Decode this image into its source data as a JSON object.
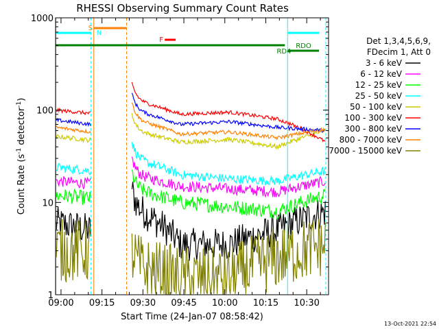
{
  "chart_data": {
    "type": "line",
    "title": "RHESSI Observing Summary Count Rates",
    "xlabel": "Start Time (24-Jan-07 08:58:42)",
    "ylabel_main": "Count Rate (s",
    "ylabel_sup1": "-1",
    "ylabel_mid": " detector",
    "ylabel_sup2": "-1",
    "ylabel_end": ")",
    "y_scale": "log",
    "ylim": [
      1,
      1000
    ],
    "xlim": [
      "08:58",
      "10:38"
    ],
    "x_ticks": [
      "09:00",
      "09:15",
      "09:30",
      "09:45",
      "10:00",
      "10:15",
      "10:30"
    ],
    "y_ticks": [
      "1",
      "10",
      "100",
      "1000"
    ],
    "legend_header": [
      "Det 1,3,4,5,6,9,",
      "FDecim 1, Att 0"
    ],
    "series": [
      {
        "name": "3 - 6 keV",
        "color": "#000000",
        "pre": [
          6,
          5
        ],
        "post": [
          9,
          3.5,
          3.5,
          5,
          8
        ],
        "noise": 0.18
      },
      {
        "name": "6 - 12 keV",
        "color": "#ff00ff",
        "pre": [
          17,
          16
        ],
        "post": [
          20,
          15,
          14,
          13,
          17
        ],
        "noise": 0.06
      },
      {
        "name": "12 - 25 keV",
        "color": "#00ff00",
        "pre": [
          12,
          11
        ],
        "post": [
          14,
          10,
          9,
          8,
          12
        ],
        "noise": 0.08
      },
      {
        "name": "25 - 50 keV",
        "color": "#00ffff",
        "pre": [
          24,
          22
        ],
        "post": [
          30,
          20,
          18,
          17,
          22
        ],
        "noise": 0.05
      },
      {
        "name": "50 - 100 keV",
        "color": "#cccc00",
        "pre": [
          52,
          47
        ],
        "post": [
          60,
          45,
          48,
          40,
          60
        ],
        "noise": 0.025
      },
      {
        "name": "100 - 300 keV",
        "color": "#ff0000",
        "pre": [
          100,
          92
        ],
        "post": [
          130,
          90,
          95,
          80,
          45
        ],
        "noise": 0.02
      },
      {
        "name": "300 - 800 keV",
        "color": "#0000ff",
        "pre": [
          78,
          70
        ],
        "post": [
          100,
          70,
          75,
          65,
          60
        ],
        "noise": 0.02
      },
      {
        "name": "800 - 7000 keV",
        "color": "#ff8000",
        "pre": [
          65,
          58
        ],
        "post": [
          80,
          55,
          58,
          50,
          62
        ],
        "noise": 0.02
      },
      {
        "name": "7000 - 15000 keV",
        "color": "#808000",
        "pre": [
          3,
          3
        ],
        "post": [
          2,
          1.5,
          1.5,
          2.5,
          3.5
        ],
        "noise": 0.35
      }
    ],
    "flags": [
      {
        "label": "S",
        "color": "#ff8000"
      },
      {
        "label": "N",
        "color": "#00ffff"
      },
      {
        "label": "F",
        "color": "#ff0000"
      },
      {
        "label": "RDO",
        "color": "#008000"
      },
      {
        "label": "RD4",
        "color": "#008000"
      }
    ]
  },
  "footer": {
    "timestamp": "13-Oct-2021 22:54"
  }
}
